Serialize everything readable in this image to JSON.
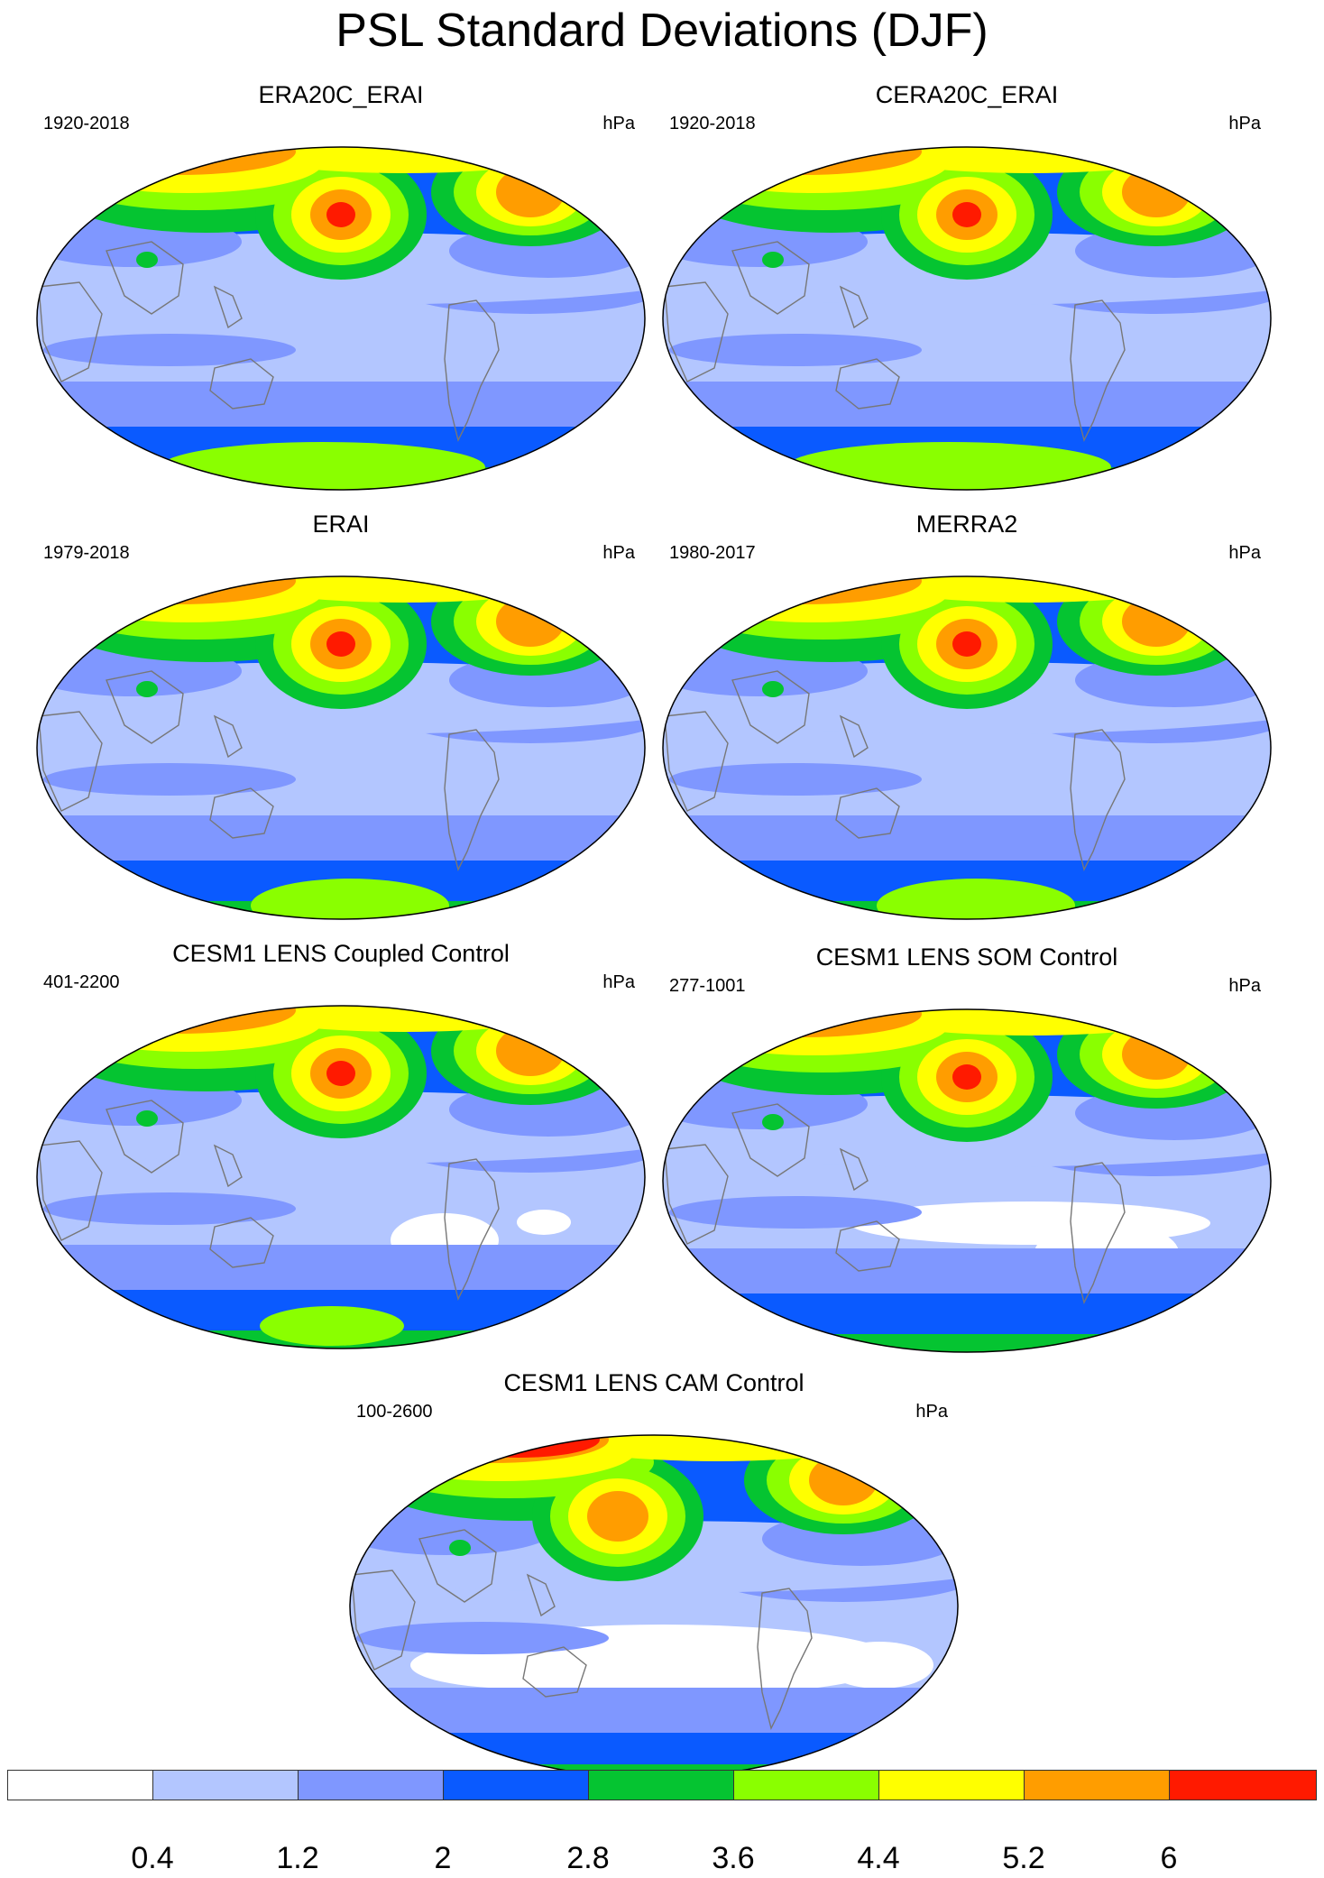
{
  "title": "PSL Standard Deviations (DJF)",
  "units": "hPa",
  "colorbar": {
    "colors": [
      "#ffffff",
      "#b3c6ff",
      "#7f97ff",
      "#0a5aff",
      "#05c431",
      "#8aff00",
      "#ffff00",
      "#ff9d00",
      "#ff1a00"
    ],
    "labels": [
      "0.4",
      "1.2",
      "2",
      "2.8",
      "3.6",
      "4.4",
      "5.2",
      "6"
    ]
  },
  "panels": [
    {
      "title": "ERA20C_ERAI",
      "years": "1920-2018",
      "units": "hPa",
      "theme": 1
    },
    {
      "title": "CERA20C_ERAI",
      "years": "1920-2018",
      "units": "hPa",
      "theme": 1
    },
    {
      "title": "ERAI",
      "years": "1979-2018",
      "units": "hPa",
      "theme": 2
    },
    {
      "title": "MERRA2",
      "years": "1980-2017",
      "units": "hPa",
      "theme": 2
    },
    {
      "title": "CESM1 LENS Coupled Control",
      "years": "401-2200",
      "units": "hPa",
      "theme": 3
    },
    {
      "title": "CESM1 LENS SOM Control",
      "years": "277-1001",
      "units": "hPa",
      "theme": 4
    },
    {
      "title": "CESM1 LENS CAM Control",
      "years": "100-2600",
      "units": "hPa",
      "theme": 5
    }
  ]
}
